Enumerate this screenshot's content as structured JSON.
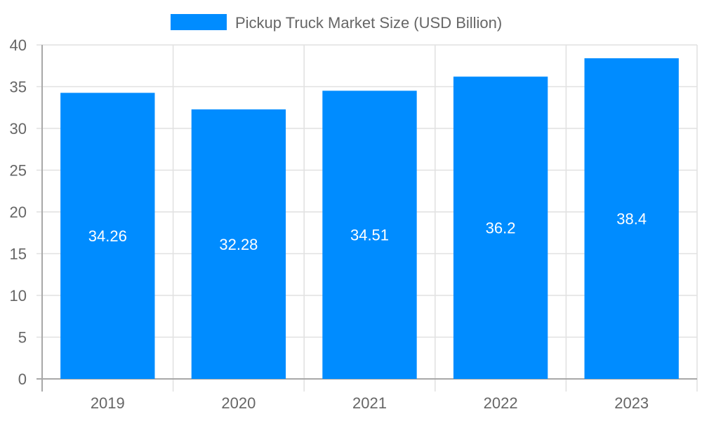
{
  "chart_data": {
    "type": "bar",
    "title": "",
    "legend": {
      "position": "top",
      "entries": [
        {
          "label": "Pickup Truck Market Size (USD Billion)",
          "color": "#008cff"
        }
      ]
    },
    "categories": [
      "2019",
      "2020",
      "2021",
      "2022",
      "2023"
    ],
    "series": [
      {
        "name": "Pickup Truck Market Size (USD Billion)",
        "values": [
          34.26,
          32.28,
          34.51,
          36.2,
          38.4
        ],
        "color": "#008cff"
      }
    ],
    "data_labels": [
      "34.26",
      "32.28",
      "34.51",
      "36.2",
      "38.4"
    ],
    "xlabel": "",
    "ylabel": "",
    "ylim": [
      0,
      40
    ],
    "yticks": [
      "0",
      "5",
      "10",
      "15",
      "20",
      "25",
      "30",
      "35",
      "40"
    ],
    "grid": true
  }
}
